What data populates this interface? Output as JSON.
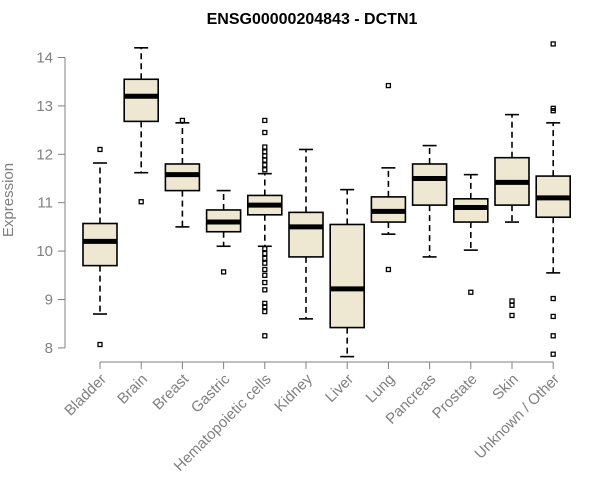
{
  "chart_data": {
    "type": "boxplot",
    "title": "ENSG00000204843 - DCTN1",
    "xlabel": "",
    "ylabel": "Expression",
    "ylim": [
      7.7,
      14.4
    ],
    "yticks": [
      8,
      9,
      10,
      11,
      12,
      13,
      14
    ],
    "colors": {
      "box_fill": "#EEE8D2",
      "box_stroke": "#000000",
      "axis": "#808080",
      "tick_label": "#808080"
    },
    "categories": [
      "Bladder",
      "Brain",
      "Breast",
      "Gastric",
      "Hematopoietic cells",
      "Kidney",
      "Liver",
      "Lung",
      "Pancreas",
      "Prostate",
      "Skin",
      "Unknown / Other"
    ],
    "boxes": [
      {
        "category": "Bladder",
        "whisker_low": 8.7,
        "q1": 9.7,
        "median": 10.2,
        "q3": 10.57,
        "whisker_high": 11.82,
        "outliers": [
          8.07,
          12.1
        ]
      },
      {
        "category": "Brain",
        "whisker_low": 11.62,
        "q1": 12.68,
        "median": 13.2,
        "q3": 13.55,
        "whisker_high": 14.2,
        "outliers": [
          11.02
        ]
      },
      {
        "category": "Breast",
        "whisker_low": 10.5,
        "q1": 11.25,
        "median": 11.58,
        "q3": 11.8,
        "whisker_high": 12.65,
        "outliers": [
          12.7
        ]
      },
      {
        "category": "Gastric",
        "whisker_low": 10.1,
        "q1": 10.4,
        "median": 10.6,
        "q3": 10.85,
        "whisker_high": 11.25,
        "outliers": [
          9.57
        ]
      },
      {
        "category": "Hematopoietic cells",
        "whisker_low": 10.1,
        "q1": 10.75,
        "median": 10.95,
        "q3": 11.15,
        "whisker_high": 11.6,
        "outliers": [
          8.25,
          8.75,
          8.85,
          8.92,
          9.2,
          9.35,
          9.5,
          9.62,
          9.75,
          9.85,
          9.95,
          10.05,
          11.68,
          11.78,
          11.88,
          11.97,
          12.05,
          12.15,
          12.45,
          12.7
        ]
      },
      {
        "category": "Kidney",
        "whisker_low": 8.6,
        "q1": 9.88,
        "median": 10.5,
        "q3": 10.8,
        "whisker_high": 12.1,
        "outliers": []
      },
      {
        "category": "Liver",
        "whisker_low": 7.82,
        "q1": 8.42,
        "median": 9.22,
        "q3": 10.55,
        "whisker_high": 11.27,
        "outliers": []
      },
      {
        "category": "Lung",
        "whisker_low": 10.35,
        "q1": 10.6,
        "median": 10.82,
        "q3": 11.12,
        "whisker_high": 11.72,
        "outliers": [
          9.62,
          13.42
        ]
      },
      {
        "category": "Pancreas",
        "whisker_low": 9.88,
        "q1": 10.95,
        "median": 11.5,
        "q3": 11.8,
        "whisker_high": 12.18,
        "outliers": []
      },
      {
        "category": "Prostate",
        "whisker_low": 10.02,
        "q1": 10.6,
        "median": 10.9,
        "q3": 11.08,
        "whisker_high": 11.58,
        "outliers": [
          9.15
        ]
      },
      {
        "category": "Skin",
        "whisker_low": 10.6,
        "q1": 10.95,
        "median": 11.42,
        "q3": 11.93,
        "whisker_high": 12.82,
        "outliers": [
          8.67,
          8.88,
          8.97
        ]
      },
      {
        "category": "Unknown / Other",
        "whisker_low": 9.55,
        "q1": 10.7,
        "median": 11.1,
        "q3": 11.55,
        "whisker_high": 12.65,
        "outliers": [
          7.87,
          8.25,
          8.65,
          9.02,
          12.9,
          12.95,
          14.28
        ]
      }
    ]
  }
}
